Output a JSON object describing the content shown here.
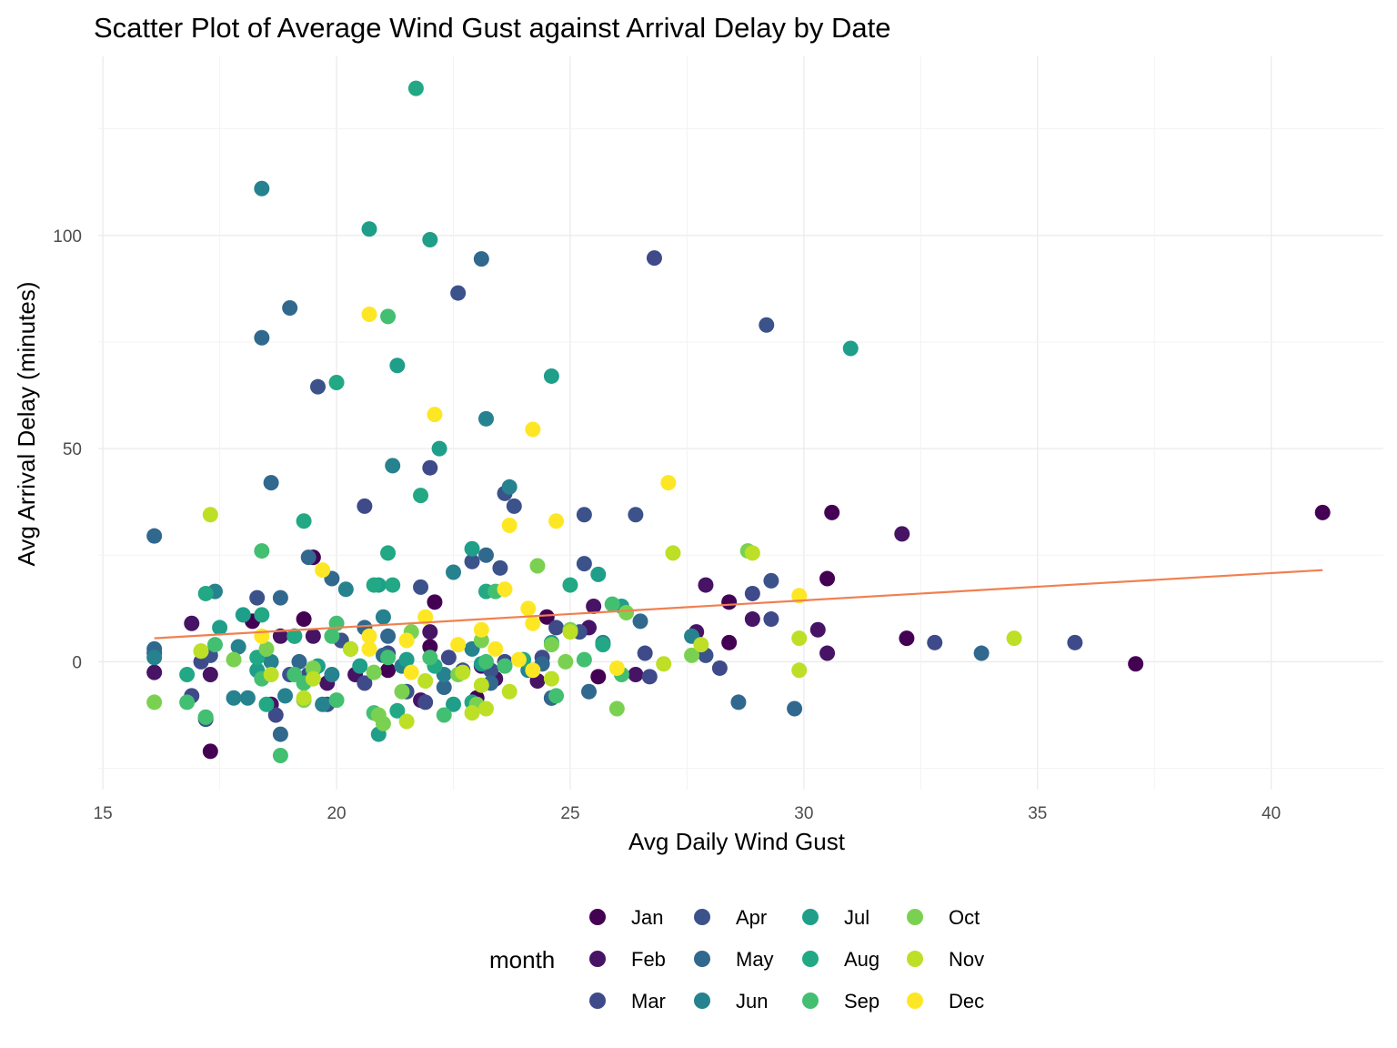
{
  "chart_data": {
    "type": "scatter",
    "title": "Scatter Plot of Average Wind Gust against Arrival Delay by Date",
    "xlabel": "Avg Daily Wind Gust",
    "ylabel": "Avg Arrival Delay (minutes)",
    "xlim": [
      14.9,
      42.4
    ],
    "ylim": [
      -30,
      142
    ],
    "x_ticks": [
      15,
      20,
      25,
      30,
      35,
      40
    ],
    "x_tick_labels": [
      "15",
      "20",
      "25",
      "30",
      "35",
      "40"
    ],
    "y_ticks": [
      0,
      50,
      100
    ],
    "y_tick_labels": [
      "0",
      "50",
      "100"
    ],
    "grid": true,
    "legend": {
      "title": "month",
      "position": "bottom"
    },
    "series": [
      {
        "name": "Jan",
        "color": "#440154",
        "points": [
          [
            41.1,
            35
          ],
          [
            30.6,
            35
          ],
          [
            30.5,
            19.5
          ],
          [
            32.2,
            5.5
          ],
          [
            37.1,
            -0.5
          ],
          [
            28.4,
            14
          ],
          [
            28.4,
            4.5
          ],
          [
            22.1,
            14
          ],
          [
            24.5,
            10.5
          ],
          [
            25.6,
            -3.5
          ],
          [
            17.3,
            -21
          ],
          [
            19.5,
            24.5
          ],
          [
            19.3,
            10
          ],
          [
            18.2,
            9.5
          ],
          [
            20.1,
            5
          ],
          [
            22.0,
            3.5
          ],
          [
            21.1,
            -2
          ],
          [
            23.0,
            -8.5
          ],
          [
            24.6,
            -8.5
          ]
        ]
      },
      {
        "name": "Feb",
        "color": "#471365",
        "points": [
          [
            32.1,
            30
          ],
          [
            30.5,
            2
          ],
          [
            30.3,
            7.5
          ],
          [
            28.9,
            10
          ],
          [
            27.9,
            18
          ],
          [
            27.7,
            7
          ],
          [
            26.4,
            -3
          ],
          [
            25.4,
            8
          ],
          [
            23.1,
            -1
          ],
          [
            22.0,
            7
          ],
          [
            20.4,
            -3
          ],
          [
            19.5,
            6
          ],
          [
            18.8,
            6
          ],
          [
            16.9,
            9
          ],
          [
            16.1,
            -2.5
          ],
          [
            17.3,
            -3
          ],
          [
            18.6,
            -10
          ],
          [
            21.8,
            -9
          ],
          [
            23.4,
            -4
          ],
          [
            24.3,
            -4.5
          ],
          [
            25.5,
            13
          ],
          [
            19.8,
            -5
          ]
        ]
      },
      {
        "name": "Mar",
        "color": "#3e4a89",
        "points": [
          [
            26.8,
            94.7
          ],
          [
            22.0,
            45.5
          ],
          [
            20.6,
            36.5
          ],
          [
            35.8,
            4.5
          ],
          [
            32.8,
            4.5
          ],
          [
            29.3,
            10
          ],
          [
            28.9,
            16
          ],
          [
            28.2,
            -1.5
          ],
          [
            26.6,
            2
          ],
          [
            26.7,
            -3.5
          ],
          [
            24.4,
            1
          ],
          [
            23.6,
            0
          ],
          [
            22.4,
            1
          ],
          [
            21.9,
            -9.5
          ],
          [
            20.6,
            -5
          ],
          [
            19.4,
            -3
          ],
          [
            18.7,
            -12.5
          ],
          [
            17.1,
            0
          ],
          [
            16.9,
            -8
          ],
          [
            24.7,
            8
          ],
          [
            22.7,
            -2
          ],
          [
            21.1,
            2
          ]
        ]
      },
      {
        "name": "Apr",
        "color": "#3b528b",
        "points": [
          [
            29.2,
            79
          ],
          [
            19.6,
            64.5
          ],
          [
            22.6,
            86.5
          ],
          [
            23.6,
            39.5
          ],
          [
            23.8,
            36.5
          ],
          [
            25.3,
            34.5
          ],
          [
            26.4,
            34.5
          ],
          [
            25.3,
            23
          ],
          [
            23.5,
            22
          ],
          [
            22.9,
            23.5
          ],
          [
            21.8,
            17.5
          ],
          [
            20.1,
            5
          ],
          [
            19.0,
            -3
          ],
          [
            18.3,
            15
          ],
          [
            17.3,
            1.5
          ],
          [
            16.1,
            2
          ],
          [
            17.2,
            -13.5
          ],
          [
            19.8,
            -10
          ],
          [
            21.5,
            -7
          ],
          [
            25.2,
            7
          ],
          [
            27.9,
            1.5
          ],
          [
            29.3,
            19
          ],
          [
            23.3,
            -2
          ]
        ]
      },
      {
        "name": "May",
        "color": "#31688e",
        "points": [
          [
            23.1,
            94.5
          ],
          [
            19.0,
            83
          ],
          [
            18.4,
            76
          ],
          [
            16.1,
            29.5
          ],
          [
            18.6,
            42
          ],
          [
            19.9,
            19.5
          ],
          [
            18.8,
            15
          ],
          [
            19.4,
            24.5
          ],
          [
            20.6,
            8
          ],
          [
            21.0,
            1.5
          ],
          [
            22.3,
            -6
          ],
          [
            23.3,
            -5
          ],
          [
            24.4,
            -0.5
          ],
          [
            24.6,
            -8.5
          ],
          [
            26.5,
            9.5
          ],
          [
            25.4,
            -7
          ],
          [
            28.6,
            -9.5
          ],
          [
            29.8,
            -11
          ],
          [
            33.8,
            2
          ],
          [
            16.1,
            3
          ],
          [
            17.2,
            -13
          ],
          [
            18.8,
            -17
          ],
          [
            19.2,
            0
          ],
          [
            21.1,
            6
          ],
          [
            23.2,
            25
          ]
        ]
      },
      {
        "name": "Jun",
        "color": "#26828e",
        "points": [
          [
            18.4,
            111
          ],
          [
            23.7,
            41
          ],
          [
            23.2,
            57
          ],
          [
            21.2,
            46
          ],
          [
            22.5,
            21
          ],
          [
            20.2,
            17
          ],
          [
            18.6,
            0
          ],
          [
            17.4,
            16.5
          ],
          [
            17.8,
            -8.5
          ],
          [
            18.9,
            -8
          ],
          [
            19.9,
            -3
          ],
          [
            21.0,
            10.5
          ],
          [
            22.3,
            -3
          ],
          [
            24.1,
            -2
          ],
          [
            25.7,
            4.5
          ],
          [
            27.6,
            6
          ],
          [
            19.7,
            -10
          ],
          [
            16.1,
            1
          ],
          [
            17.9,
            3.5
          ],
          [
            18.1,
            -8.5
          ],
          [
            21.4,
            -1
          ],
          [
            22.9,
            3
          ]
        ]
      },
      {
        "name": "Jul",
        "color": "#1f9e89",
        "points": [
          [
            31.0,
            73.5
          ],
          [
            24.6,
            67
          ],
          [
            21.3,
            69.5
          ],
          [
            20.7,
            101.5
          ],
          [
            22.0,
            99
          ],
          [
            22.2,
            50
          ],
          [
            22.9,
            26.5
          ],
          [
            24.6,
            4.5
          ],
          [
            25.6,
            20.5
          ],
          [
            26.1,
            13
          ],
          [
            20.9,
            18
          ],
          [
            19.1,
            6
          ],
          [
            18.0,
            11
          ],
          [
            17.5,
            8
          ],
          [
            19.6,
            -1
          ],
          [
            20.5,
            -1
          ],
          [
            21.5,
            0.5
          ],
          [
            23.1,
            -0.5
          ],
          [
            20.9,
            -17
          ],
          [
            18.3,
            -2
          ],
          [
            22.5,
            -10
          ]
        ]
      },
      {
        "name": "Aug",
        "color": "#22a884",
        "points": [
          [
            21.7,
            134.5
          ],
          [
            21.8,
            39
          ],
          [
            20.0,
            65.5
          ],
          [
            19.3,
            33
          ],
          [
            21.1,
            25.5
          ],
          [
            20.8,
            18
          ],
          [
            21.2,
            18
          ],
          [
            23.2,
            16.5
          ],
          [
            25.0,
            18
          ],
          [
            25.7,
            4
          ],
          [
            18.4,
            11
          ],
          [
            19.1,
            6
          ],
          [
            21.3,
            -11.5
          ],
          [
            17.2,
            16
          ],
          [
            16.8,
            -3
          ],
          [
            18.3,
            1
          ],
          [
            19.5,
            -2
          ],
          [
            20.3,
            3
          ],
          [
            22.1,
            -1
          ],
          [
            24.0,
            0.5
          ],
          [
            22.9,
            -9.5
          ],
          [
            18.5,
            -10
          ]
        ]
      },
      {
        "name": "Sep",
        "color": "#43bf71",
        "points": [
          [
            21.1,
            81
          ],
          [
            18.4,
            26
          ],
          [
            20.0,
            9
          ],
          [
            21.1,
            1
          ],
          [
            23.2,
            0
          ],
          [
            23.4,
            16.5
          ],
          [
            25.9,
            13.5
          ],
          [
            26.1,
            -3
          ],
          [
            19.9,
            6
          ],
          [
            18.4,
            -4
          ],
          [
            17.2,
            -13
          ],
          [
            18.8,
            -22
          ],
          [
            20.8,
            -12
          ],
          [
            22.3,
            -12.5
          ],
          [
            25.3,
            0.5
          ],
          [
            23.6,
            -1
          ],
          [
            19.1,
            -3
          ],
          [
            20.0,
            -9
          ],
          [
            16.8,
            -9.5
          ],
          [
            17.4,
            4
          ],
          [
            19.3,
            -5
          ],
          [
            22.0,
            1
          ],
          [
            24.7,
            -8
          ]
        ]
      },
      {
        "name": "Oct",
        "color": "#7ad151",
        "points": [
          [
            28.8,
            26
          ],
          [
            24.3,
            22.5
          ],
          [
            23.1,
            5
          ],
          [
            21.6,
            7
          ],
          [
            19.5,
            -1.5
          ],
          [
            17.8,
            0.5
          ],
          [
            16.1,
            -9.5
          ],
          [
            17.1,
            2.5
          ],
          [
            20.9,
            -12.5
          ],
          [
            22.6,
            -3
          ],
          [
            24.9,
            0
          ],
          [
            26.2,
            11.5
          ],
          [
            27.6,
            1.5
          ],
          [
            26.0,
            -11
          ],
          [
            21.4,
            -7
          ],
          [
            19.3,
            -9
          ],
          [
            18.5,
            3
          ],
          [
            20.8,
            -2.5
          ],
          [
            23.0,
            -10
          ],
          [
            24.6,
            4
          ],
          [
            21.0,
            -14.5
          ],
          [
            25.0,
            7.5
          ]
        ]
      },
      {
        "name": "Nov",
        "color": "#bddf26",
        "points": [
          [
            17.3,
            34.5
          ],
          [
            28.9,
            25.5
          ],
          [
            27.2,
            25.5
          ],
          [
            34.5,
            5.5
          ],
          [
            29.9,
            5.5
          ],
          [
            29.9,
            -2
          ],
          [
            27.0,
            -0.5
          ],
          [
            27.8,
            4
          ],
          [
            25.0,
            7
          ],
          [
            24.6,
            -4
          ],
          [
            23.2,
            -11
          ],
          [
            22.7,
            -2.5
          ],
          [
            21.5,
            -14
          ],
          [
            19.5,
            -4
          ],
          [
            20.3,
            3
          ],
          [
            19.3,
            -8.5
          ],
          [
            18.6,
            -3
          ],
          [
            17.1,
            2.5
          ],
          [
            21.9,
            -4.5
          ],
          [
            23.1,
            -5.5
          ],
          [
            23.7,
            -7
          ],
          [
            22.9,
            -12
          ]
        ]
      },
      {
        "name": "Dec",
        "color": "#fde725",
        "points": [
          [
            20.7,
            81.5
          ],
          [
            22.1,
            58
          ],
          [
            24.2,
            54.5
          ],
          [
            27.1,
            42
          ],
          [
            24.7,
            33
          ],
          [
            23.7,
            32
          ],
          [
            19.7,
            21.5
          ],
          [
            23.6,
            17
          ],
          [
            24.1,
            12.5
          ],
          [
            24.2,
            9
          ],
          [
            23.4,
            3
          ],
          [
            23.9,
            0.5
          ],
          [
            24.2,
            -2
          ],
          [
            22.6,
            4
          ],
          [
            21.9,
            10.5
          ],
          [
            21.5,
            5
          ],
          [
            20.7,
            6
          ],
          [
            20.7,
            3
          ],
          [
            18.4,
            6
          ],
          [
            21.6,
            -2.5
          ],
          [
            26.0,
            -1.5
          ],
          [
            29.9,
            15.5
          ],
          [
            23.1,
            7.5
          ]
        ]
      }
    ],
    "trend_line": {
      "color": "#f08050",
      "x": [
        16.1,
        41.1
      ],
      "y": [
        5.5,
        21.5
      ]
    }
  }
}
